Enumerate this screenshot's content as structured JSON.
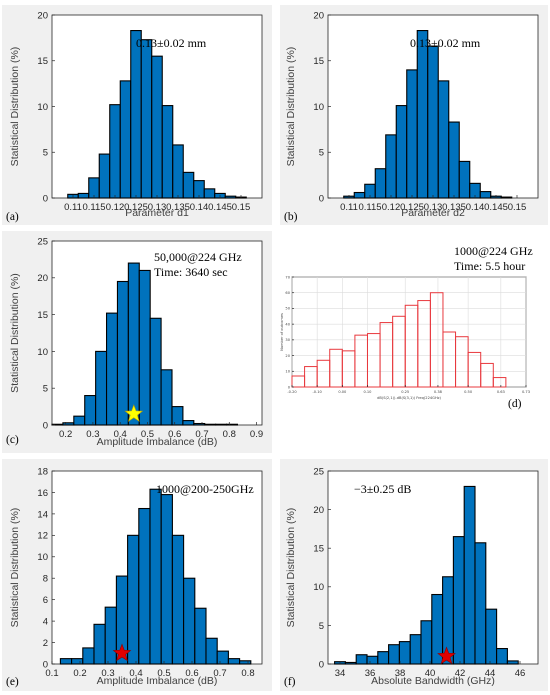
{
  "panels": [
    {
      "letter": "(a)",
      "annotation": [
        "0.13±0.02 mm"
      ]
    },
    {
      "letter": "(b)",
      "annotation": [
        "0.13±0.02 mm"
      ]
    },
    {
      "letter": "(c)",
      "annotation": [
        "50,000@224 GHz",
        "Time: 3640 sec"
      ]
    },
    {
      "letter": "(d)",
      "annotation": [
        "1000@224 GHz",
        "Time: 5.5 hour"
      ]
    },
    {
      "letter": "(e)",
      "annotation": [
        "1000@200-250GHz"
      ]
    },
    {
      "letter": "(f)",
      "annotation": [
        "−3±0.25 dB"
      ]
    }
  ],
  "chart_data": [
    {
      "type": "bar",
      "xlabel": "Parameter d1",
      "ylabel": "Statistical Distribution (%)",
      "xlim": [
        0.105,
        0.155
      ],
      "ylim": [
        0,
        20
      ],
      "xticks": [
        "0.11",
        "0.115",
        "0.12",
        "0.125",
        "0.13",
        "0.135",
        "0.14",
        "0.145",
        "0.15"
      ],
      "xtick_values": [
        0.11,
        0.115,
        0.12,
        0.125,
        0.13,
        0.135,
        0.14,
        0.145,
        0.15
      ],
      "yticks": [
        "0",
        "5",
        "10",
        "15",
        "20"
      ],
      "ytick_values": [
        0,
        5,
        10,
        15,
        20
      ],
      "bin_width": 0.0025,
      "x": [
        0.11,
        0.1125,
        0.115,
        0.1175,
        0.12,
        0.1225,
        0.125,
        0.1275,
        0.13,
        0.1325,
        0.135,
        0.1375,
        0.14,
        0.1425,
        0.145,
        0.1475,
        0.15
      ],
      "values": [
        0.4,
        0.5,
        2.2,
        4.8,
        10.2,
        12.8,
        18.3,
        17.3,
        15.5,
        10.1,
        5.8,
        2.8,
        1.9,
        1.0,
        0.5,
        0.2,
        0.1
      ]
    },
    {
      "type": "bar",
      "xlabel": "Parameter d2",
      "ylabel": "Statistical Distribution (%)",
      "xlim": [
        0.105,
        0.155
      ],
      "ylim": [
        0,
        20
      ],
      "xticks": [
        "0.11",
        "0.115",
        "0.12",
        "0.125",
        "0.13",
        "0.135",
        "0.14",
        "0.145",
        "0.15"
      ],
      "xtick_values": [
        0.11,
        0.115,
        0.12,
        0.125,
        0.13,
        0.135,
        0.14,
        0.145,
        0.15
      ],
      "yticks": [
        "0",
        "5",
        "10",
        "15",
        "20"
      ],
      "ytick_values": [
        0,
        5,
        10,
        15,
        20
      ],
      "bin_width": 0.0025,
      "x": [
        0.11,
        0.1125,
        0.115,
        0.1175,
        0.12,
        0.1225,
        0.125,
        0.1275,
        0.13,
        0.1325,
        0.135,
        0.1375,
        0.14,
        0.1425,
        0.145,
        0.1475,
        0.15
      ],
      "values": [
        0.2,
        0.6,
        1.5,
        3.2,
        6.9,
        10.1,
        14.0,
        18.3,
        16.6,
        12.8,
        8.3,
        4.0,
        1.6,
        0.7,
        0.2,
        0.1,
        0.0
      ]
    },
    {
      "type": "bar",
      "xlabel": "Amplitude Imbalance (dB)",
      "ylabel": "Statistical Distribution (%)",
      "xlim": [
        0.15,
        0.92
      ],
      "ylim": [
        0,
        25
      ],
      "xticks": [
        "0.2",
        "0.3",
        "0.4",
        "0.5",
        "0.6",
        "0.7",
        "0.8",
        "0.9"
      ],
      "xtick_values": [
        0.2,
        0.3,
        0.4,
        0.5,
        0.6,
        0.7,
        0.8,
        0.9
      ],
      "yticks": [
        "0",
        "5",
        "10",
        "15",
        "20",
        "25"
      ],
      "ytick_values": [
        0,
        5,
        10,
        15,
        20,
        25
      ],
      "bin_width": 0.04,
      "x": [
        0.17,
        0.21,
        0.25,
        0.29,
        0.33,
        0.37,
        0.41,
        0.45,
        0.49,
        0.53,
        0.57,
        0.61,
        0.65,
        0.69,
        0.73,
        0.77,
        0.81,
        0.85,
        0.89
      ],
      "values": [
        0.1,
        0.3,
        1.2,
        4.0,
        10.0,
        15.2,
        19.5,
        22.0,
        21.0,
        14.5,
        7.5,
        2.5,
        0.6,
        0.2,
        0.1,
        0.1,
        0.1,
        0.0,
        0.0
      ],
      "marker": {
        "shape": "star",
        "color": "#ffff00",
        "x": 0.45,
        "y": 1.5
      }
    },
    {
      "type": "bar",
      "xlabel": "dB(S(2,1))-dB(S(3,1)) Freq(224GHz)",
      "ylabel": "Number of outcomes",
      "xlim": [
        -0.2,
        0.73
      ],
      "ylim": [
        0,
        70
      ],
      "xticks": [
        "-0.20",
        "-0.10",
        "0.00",
        "0.10",
        "0.25",
        "0.38",
        "0.50",
        "0.63",
        "0.73"
      ],
      "xtick_values": [
        -0.2,
        -0.1,
        0.0,
        0.1,
        0.25,
        0.38,
        0.5,
        0.63,
        0.73
      ],
      "yticks": [
        "0",
        "10",
        "20",
        "30",
        "40",
        "50",
        "60",
        "70"
      ],
      "ytick_values": [
        0,
        10,
        20,
        30,
        40,
        50,
        60,
        70
      ],
      "bin_width": 0.05,
      "x": [
        -0.175,
        -0.125,
        -0.075,
        -0.025,
        0.025,
        0.075,
        0.125,
        0.175,
        0.225,
        0.275,
        0.325,
        0.375,
        0.425,
        0.475,
        0.525,
        0.575,
        0.625
      ],
      "values": [
        7,
        13,
        17,
        24,
        23,
        33,
        34,
        41,
        45,
        52,
        55,
        60,
        35,
        32,
        22,
        15,
        6
      ]
    },
    {
      "type": "bar",
      "xlabel": "Amplitude Imbalance (dB)",
      "ylabel": "Statistical Distribution (%)",
      "xlim": [
        0.1,
        0.85
      ],
      "ylim": [
        0,
        18
      ],
      "xticks": [
        "0.1",
        "0.2",
        "0.3",
        "0.4",
        "0.5",
        "0.6",
        "0.7",
        "0.8"
      ],
      "xtick_values": [
        0.1,
        0.2,
        0.3,
        0.4,
        0.5,
        0.6,
        0.7,
        0.8
      ],
      "yticks": [
        "0",
        "2",
        "4",
        "6",
        "8",
        "10",
        "12",
        "14",
        "16",
        "18"
      ],
      "ytick_values": [
        0,
        2,
        4,
        6,
        8,
        10,
        12,
        14,
        16,
        18
      ],
      "bin_width": 0.04,
      "x": [
        0.15,
        0.19,
        0.23,
        0.27,
        0.31,
        0.35,
        0.39,
        0.43,
        0.47,
        0.51,
        0.55,
        0.59,
        0.63,
        0.67,
        0.71,
        0.75,
        0.79
      ],
      "values": [
        0.5,
        0.5,
        1.5,
        3.7,
        5.3,
        8.2,
        12.0,
        14.5,
        16.3,
        15.8,
        12.0,
        8.0,
        5.2,
        2.4,
        1.2,
        0.5,
        0.3
      ],
      "marker": {
        "shape": "star",
        "color": "#e00000",
        "x": 0.35,
        "y": 1.0
      }
    },
    {
      "type": "bar",
      "xlabel": "Absolute Bandwidth (GHz)",
      "ylabel": "Statistical Distribution (%)",
      "xlim": [
        33.2,
        47.2
      ],
      "ylim": [
        0,
        25
      ],
      "xticks": [
        "34",
        "36",
        "38",
        "40",
        "42",
        "44",
        "46"
      ],
      "xtick_values": [
        34,
        36,
        38,
        40,
        42,
        44,
        46
      ],
      "yticks": [
        "0",
        "5",
        "10",
        "15",
        "20",
        "25"
      ],
      "ytick_values": [
        0,
        5,
        10,
        15,
        20,
        25
      ],
      "bin_width": 0.72,
      "x": [
        34.0,
        34.72,
        35.44,
        36.16,
        36.88,
        37.6,
        38.32,
        39.04,
        39.76,
        40.48,
        41.2,
        41.92,
        42.64,
        43.36,
        44.08,
        44.8,
        45.52
      ],
      "values": [
        0.3,
        0.2,
        1.2,
        1.0,
        1.6,
        2.5,
        2.9,
        3.8,
        5.6,
        9.0,
        11.3,
        16.5,
        23.0,
        15.7,
        7.1,
        2.0,
        0.4
      ],
      "marker": {
        "shape": "star",
        "color": "#e00000",
        "x": 41.1,
        "y": 1.0
      }
    }
  ]
}
